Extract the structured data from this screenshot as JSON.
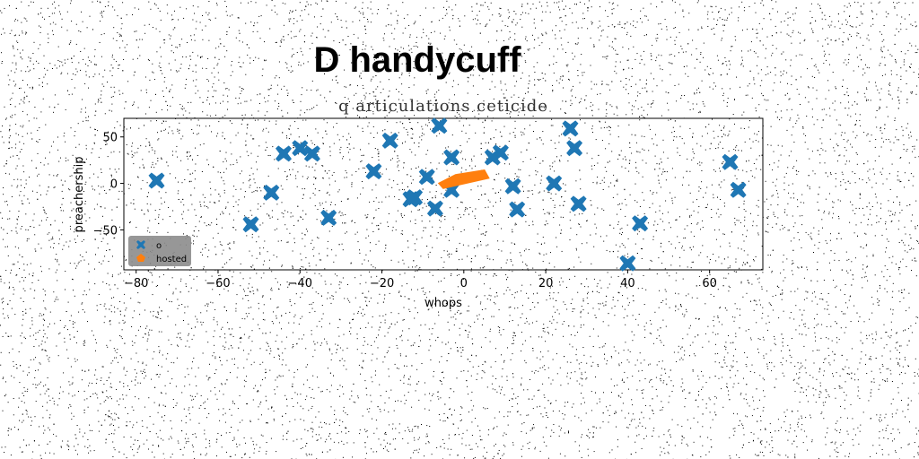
{
  "chart_data": {
    "type": "scatter",
    "title": "D handycuff",
    "subtitle": "q articulations ceticide",
    "xlabel": "whops",
    "ylabel": "preachership",
    "xlim": [
      -83,
      73
    ],
    "ylim": [
      -93,
      70
    ],
    "xticks": [
      -80,
      -60,
      -40,
      -20,
      0,
      20,
      40,
      60
    ],
    "yticks": [
      -50,
      0,
      50
    ],
    "grid": false,
    "legend_position": "lower left",
    "series": [
      {
        "name": "o",
        "marker": "x-filled",
        "color": "#1f77b4",
        "points": [
          [
            -75,
            3
          ],
          [
            -52,
            -44
          ],
          [
            -47,
            -10
          ],
          [
            -44,
            32
          ],
          [
            -40,
            38
          ],
          [
            -37,
            32
          ],
          [
            -33,
            -37
          ],
          [
            -22,
            13
          ],
          [
            -18,
            46
          ],
          [
            -13,
            -17
          ],
          [
            -12,
            -15
          ],
          [
            -9,
            7
          ],
          [
            -7,
            -27
          ],
          [
            -6,
            62
          ],
          [
            -3,
            28
          ],
          [
            -3,
            -7
          ],
          [
            7,
            28
          ],
          [
            9,
            33
          ],
          [
            12,
            -3
          ],
          [
            13,
            -28
          ],
          [
            22,
            0
          ],
          [
            26,
            59
          ],
          [
            27,
            38
          ],
          [
            28,
            -22
          ],
          [
            40,
            -86
          ],
          [
            43,
            -43
          ],
          [
            65,
            23
          ],
          [
            67,
            -7
          ]
        ]
      },
      {
        "name": "hosted",
        "marker": "polygon",
        "color": "#ff7f0e",
        "points": [
          [
            -6,
            0
          ],
          [
            -5,
            -5
          ],
          [
            6,
            6
          ],
          [
            5,
            14
          ],
          [
            -2,
            9
          ]
        ]
      }
    ]
  }
}
